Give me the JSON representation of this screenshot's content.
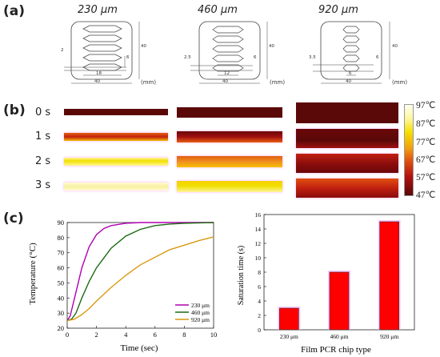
{
  "panel_labels": {
    "a": "(a)",
    "b": "(b)",
    "c": "(c)"
  },
  "chips": [
    {
      "thickness": "230 μm",
      "unit": "(mm)",
      "dims": [
        "2",
        "40",
        "6",
        "18",
        "40"
      ]
    },
    {
      "thickness": "460 μm",
      "unit": "(mm)",
      "dims": [
        "2.5",
        "40",
        "6",
        "12",
        "40"
      ]
    },
    {
      "thickness": "920 μm",
      "unit": "(mm)",
      "dims": [
        "3.5",
        "40",
        "6",
        "6",
        "40"
      ]
    }
  ],
  "times": [
    "0 s",
    "1 s",
    "2 s",
    "3 s"
  ],
  "colors": {
    "hot": "#fff9b0",
    "warm_yellow": "#f5e000",
    "orange": "#ee7a10",
    "red": "#c01818",
    "dark": "#5a0a0a",
    "accent_magenta": "#b000b0",
    "green": "#1a6a10",
    "gold": "#d89a10",
    "bar_red": "#ff0000"
  },
  "color_scale": [
    "97℃",
    "87℃",
    "77℃",
    "67℃",
    "57℃",
    "47℃"
  ],
  "chart_data": [
    {
      "type": "line",
      "xlabel": "Time (sec)",
      "ylabel": "Temperature (°C)",
      "xlim": [
        0,
        10
      ],
      "ylim": [
        20,
        90
      ],
      "xticks": [
        "0",
        "2",
        "4",
        "6",
        "8",
        "10"
      ],
      "yticks": [
        "20",
        "30",
        "40",
        "50",
        "60",
        "70",
        "80",
        "90"
      ],
      "series": [
        {
          "name": "230 μm",
          "color": "#b000b0",
          "x": [
            0,
            0.2,
            0.5,
            1,
            1.5,
            2,
            2.5,
            3,
            4,
            5,
            6,
            8,
            10
          ],
          "y": [
            25,
            28,
            40,
            60,
            74,
            82,
            86,
            88,
            89.5,
            90,
            90,
            90,
            90
          ]
        },
        {
          "name": "460 μm",
          "color": "#1a6a10",
          "x": [
            0,
            0.3,
            0.6,
            1,
            1.5,
            2,
            3,
            4,
            5,
            6,
            7,
            8,
            10
          ],
          "y": [
            25,
            26,
            30,
            40,
            51,
            60,
            73,
            81,
            85.5,
            88,
            89,
            89.5,
            90
          ]
        },
        {
          "name": "920 μm",
          "color": "#d89a10",
          "x": [
            0,
            0.5,
            1,
            1.5,
            2,
            3,
            4,
            5,
            6,
            7,
            8,
            9,
            10
          ],
          "y": [
            25,
            26,
            29,
            33,
            38,
            47,
            55,
            62,
            67,
            72,
            75,
            78,
            80.5
          ]
        }
      ]
    },
    {
      "type": "bar",
      "categories": [
        "230 μm",
        "460 μm",
        "920 μm"
      ],
      "values": [
        3,
        8,
        15
      ],
      "xlabel": "Film PCR chip type",
      "ylabel": "Saturation time (s)",
      "ylim": [
        0,
        16
      ],
      "yticks": [
        "0",
        "2",
        "4",
        "6",
        "8",
        "10",
        "12",
        "14",
        "16"
      ]
    }
  ]
}
